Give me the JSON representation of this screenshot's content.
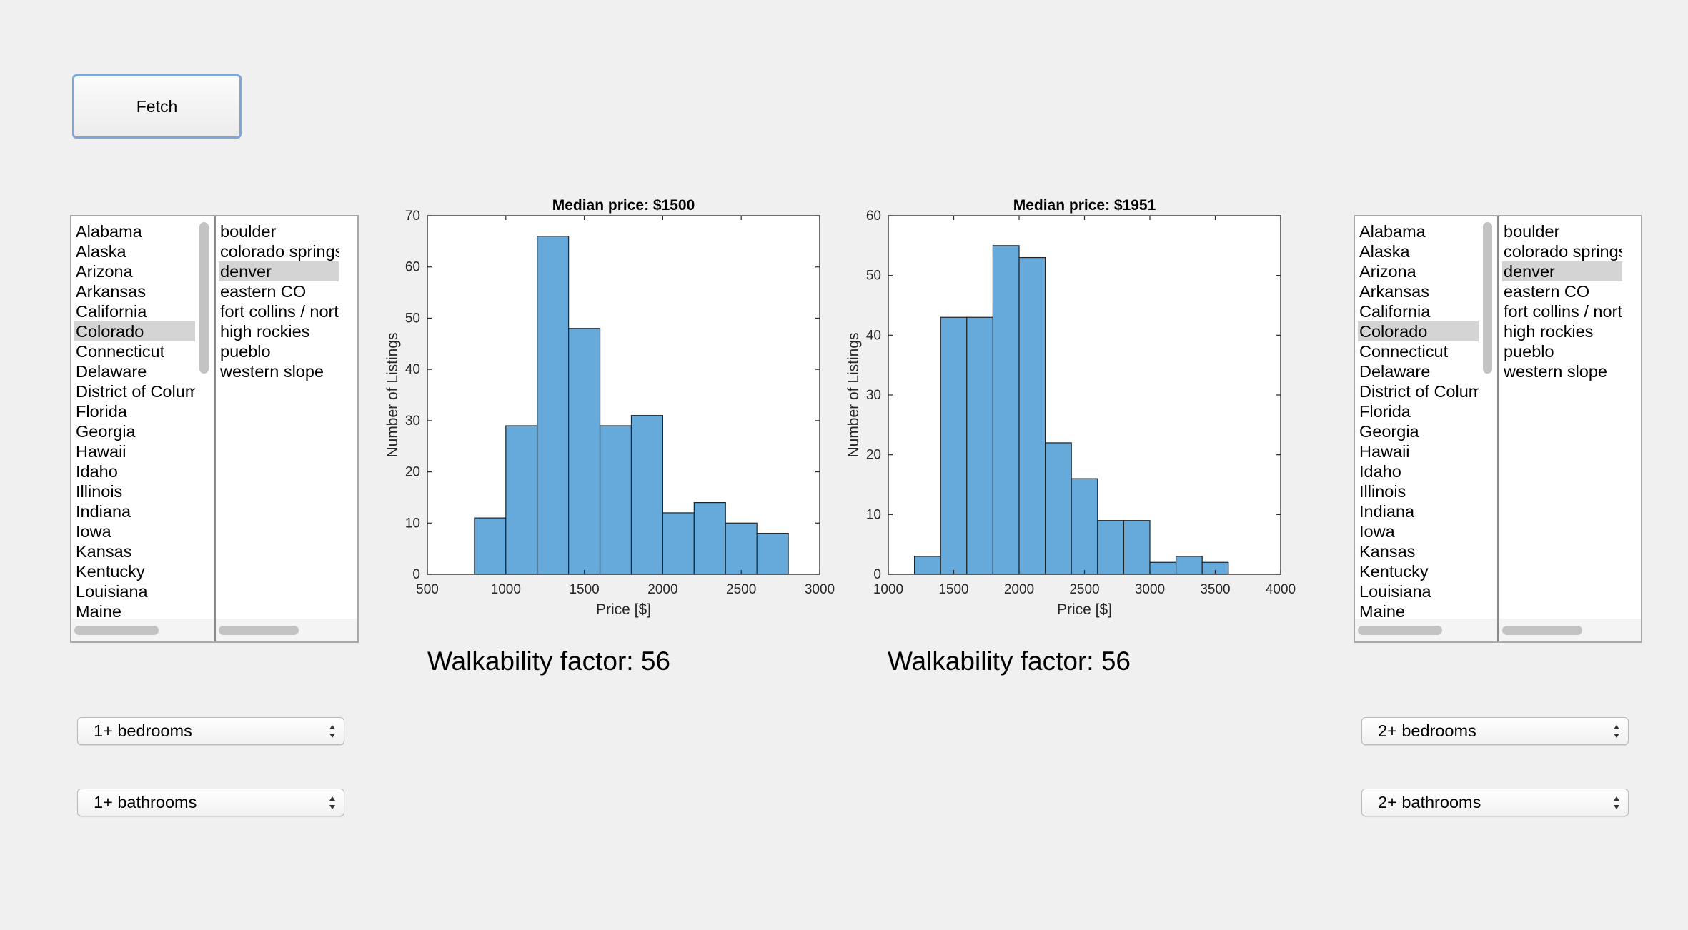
{
  "toolbar": {
    "fetch_label": "Fetch"
  },
  "colors": {
    "bar_fill": "#65aadb",
    "bar_stroke": "#222222",
    "selection": "#d4d4d4"
  },
  "left": {
    "states": [
      "Alabama",
      "Alaska",
      "Arizona",
      "Arkansas",
      "California",
      "Colorado",
      "Connecticut",
      "Delaware",
      "District of Columbia",
      "Florida",
      "Georgia",
      "Hawaii",
      "Idaho",
      "Illinois",
      "Indiana",
      "Iowa",
      "Kansas",
      "Kentucky",
      "Louisiana",
      "Maine"
    ],
    "selected_state": "Colorado",
    "regions": [
      "boulder",
      "colorado springs",
      "denver",
      "eastern CO",
      "fort collins / north CO",
      "high rockies",
      "pueblo",
      "western slope"
    ],
    "selected_region": "denver",
    "walkability": "Walkability factor: 56",
    "bedrooms": "1+ bedrooms",
    "bathrooms": "1+ bathrooms"
  },
  "right": {
    "states": [
      "Alabama",
      "Alaska",
      "Arizona",
      "Arkansas",
      "California",
      "Colorado",
      "Connecticut",
      "Delaware",
      "District of Columbia",
      "Florida",
      "Georgia",
      "Hawaii",
      "Idaho",
      "Illinois",
      "Indiana",
      "Iowa",
      "Kansas",
      "Kentucky",
      "Louisiana",
      "Maine"
    ],
    "selected_state": "Colorado",
    "regions": [
      "boulder",
      "colorado springs",
      "denver",
      "eastern CO",
      "fort collins / north CO",
      "high rockies",
      "pueblo",
      "western slope"
    ],
    "selected_region": "denver",
    "walkability": "Walkability factor: 56",
    "bedrooms": "2+ bedrooms",
    "bathrooms": "2+ bathrooms"
  },
  "chart_data": [
    {
      "type": "bar",
      "title": "Median price: $1500",
      "xlabel": "Price [$]",
      "ylabel": "Number of Listings",
      "xlim": [
        500,
        3000
      ],
      "ylim": [
        0,
        70
      ],
      "xticks": [
        500,
        1000,
        1500,
        2000,
        2500,
        3000
      ],
      "yticks": [
        0,
        10,
        20,
        30,
        40,
        50,
        60,
        70
      ],
      "bin_edges": [
        800,
        1000,
        1200,
        1400,
        1600,
        1800,
        2000,
        2200,
        2400,
        2600,
        2800
      ],
      "values": [
        11,
        29,
        66,
        48,
        29,
        31,
        12,
        14,
        10,
        8
      ],
      "grid": false
    },
    {
      "type": "bar",
      "title": "Median price: $1951",
      "xlabel": "Price [$]",
      "ylabel": "Number of Listings",
      "xlim": [
        1000,
        4000
      ],
      "ylim": [
        0,
        60
      ],
      "xticks": [
        1000,
        1500,
        2000,
        2500,
        3000,
        3500,
        4000
      ],
      "yticks": [
        0,
        10,
        20,
        30,
        40,
        50,
        60
      ],
      "bin_edges": [
        1200,
        1400,
        1600,
        1800,
        2000,
        2200,
        2400,
        2600,
        2800,
        3000,
        3200,
        3400,
        3600
      ],
      "values": [
        3,
        43,
        43,
        55,
        53,
        22,
        16,
        9,
        9,
        2,
        3,
        2
      ],
      "grid": false
    }
  ]
}
